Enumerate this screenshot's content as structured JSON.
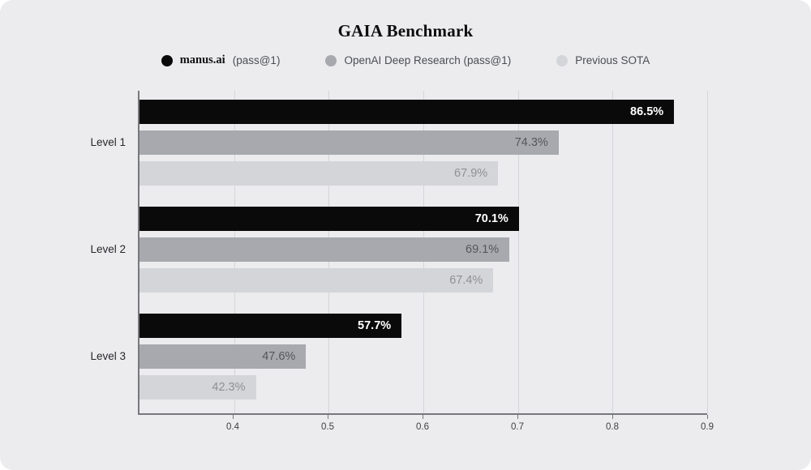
{
  "title": "GAIA Benchmark",
  "legend": {
    "manus": {
      "name": "manus.ai",
      "suffix": "(pass@1)"
    },
    "openai": {
      "label": "OpenAI Deep Research (pass@1)"
    },
    "sota": {
      "label": "Previous SOTA"
    }
  },
  "chart_data": {
    "type": "bar",
    "orientation": "horizontal",
    "title": "GAIA Benchmark",
    "categories": [
      "Level 1",
      "Level 2",
      "Level 3"
    ],
    "series": [
      {
        "name": "manus.ai (pass@1)",
        "color": "#0a0a0a",
        "values": [
          86.5,
          70.1,
          57.7
        ]
      },
      {
        "name": "OpenAI Deep Research (pass@1)",
        "color": "#a7a9ae",
        "values": [
          74.3,
          69.1,
          47.6
        ]
      },
      {
        "name": "Previous SOTA",
        "color": "#d3d5d9",
        "values": [
          67.9,
          67.4,
          42.3
        ]
      }
    ],
    "value_label_format": "percent_one_decimal",
    "xlim": [
      0.3,
      0.9
    ],
    "xticks": [
      0.4,
      0.5,
      0.6,
      0.7,
      0.8,
      0.9
    ],
    "grid": true,
    "legend_position": "top",
    "value_labels_inside_bar_right": true
  },
  "colors": {
    "card_background": "#ececee",
    "gridline": "#d4d5d8",
    "axis_line": "#77787c",
    "black_bar_label": "#ffffff",
    "gray_bar_label": "#54565b",
    "light_bar_label": "#8d9095"
  }
}
